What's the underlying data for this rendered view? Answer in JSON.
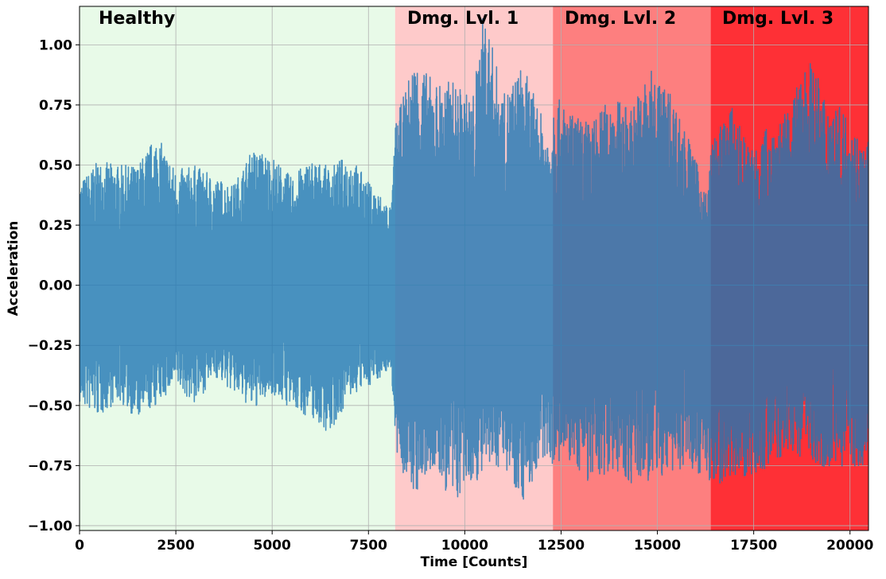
{
  "chart_data": {
    "type": "line",
    "title": "",
    "xlabel": "Time [Counts]",
    "ylabel": "Acceleration",
    "xlim": [
      0,
      20480
    ],
    "ylim": [
      -1.02,
      1.16
    ],
    "grid": true,
    "x_ticks": [
      0,
      2500,
      5000,
      7500,
      10000,
      12500,
      15000,
      17500,
      20000
    ],
    "x_tick_labels": [
      "0",
      "2500",
      "5000",
      "7500",
      "10000",
      "12500",
      "15000",
      "17500",
      "20000"
    ],
    "y_ticks": [
      1.0,
      0.75,
      0.5,
      0.25,
      0.0,
      -0.25,
      -0.5,
      -0.75,
      -1.0
    ],
    "y_tick_labels": [
      "1.00",
      "0.75",
      "0.50",
      "0.25",
      "0.00",
      "−0.25",
      "−0.50",
      "−0.75",
      "−1.00"
    ],
    "regions": [
      {
        "label": "Healthy",
        "x_start": 0,
        "x_end": 8192,
        "color": "#e8fae8"
      },
      {
        "label": "Dmg. Lvl. 1",
        "x_start": 8192,
        "x_end": 12288,
        "color": "#fecaca"
      },
      {
        "label": "Dmg. Lvl. 2",
        "x_start": 12288,
        "x_end": 16384,
        "color": "#fd7f7f"
      },
      {
        "label": "Dmg. Lvl. 3",
        "x_start": 16384,
        "x_end": 20480,
        "color": "#fe3036"
      }
    ],
    "series": [
      {
        "color": "#1f77b4",
        "opacity": 0.8,
        "envelope_x": [
          0,
          500,
          1000,
          1500,
          2000,
          2500,
          3000,
          3500,
          4000,
          4500,
          5000,
          5500,
          6000,
          6500,
          7000,
          7500,
          8100,
          8192,
          8700,
          9200,
          9700,
          10200,
          10500,
          11000,
          11500,
          12200,
          12288,
          12800,
          13300,
          13800,
          14300,
          14800,
          15300,
          15800,
          16300,
          16384,
          16900,
          17400,
          17900,
          18400,
          18900,
          19400,
          19900,
          20400,
          20480
        ],
        "envelope_max": [
          0.43,
          0.52,
          0.5,
          0.5,
          0.63,
          0.48,
          0.5,
          0.45,
          0.42,
          0.57,
          0.54,
          0.45,
          0.53,
          0.49,
          0.55,
          0.43,
          0.33,
          0.67,
          0.95,
          0.85,
          0.85,
          0.78,
          1.16,
          0.79,
          0.92,
          0.62,
          0.8,
          0.71,
          0.68,
          0.79,
          0.74,
          0.9,
          0.82,
          0.62,
          0.37,
          0.58,
          0.75,
          0.57,
          0.67,
          0.72,
          0.96,
          0.78,
          0.72,
          0.57,
          0.64
        ],
        "envelope_min": [
          -0.5,
          -0.55,
          -0.48,
          -0.56,
          -0.5,
          -0.42,
          -0.5,
          -0.38,
          -0.45,
          -0.52,
          -0.45,
          -0.52,
          -0.55,
          -0.62,
          -0.47,
          -0.42,
          -0.35,
          -0.72,
          -0.88,
          -0.77,
          -0.92,
          -0.82,
          -0.8,
          -0.74,
          -0.9,
          -0.7,
          -0.76,
          -0.74,
          -0.84,
          -0.76,
          -0.83,
          -0.82,
          -0.79,
          -0.76,
          -0.8,
          -0.86,
          -0.79,
          -0.8,
          -0.76,
          -0.7,
          -0.72,
          -0.76,
          -0.75,
          -0.77,
          -0.6
        ]
      }
    ]
  }
}
